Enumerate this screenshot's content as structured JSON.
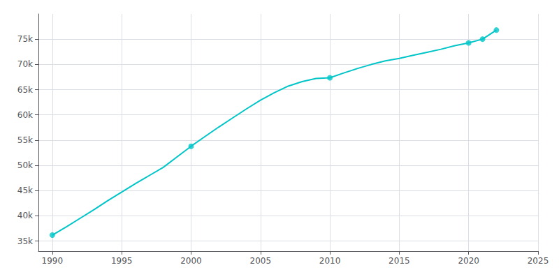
{
  "chart_data": {
    "type": "line",
    "series": [
      {
        "type": "line",
        "color": "#00C5C8",
        "x": [
          1990,
          1991,
          1992,
          1993,
          1994,
          1995,
          1996,
          1997,
          1998,
          1999,
          2000,
          2001,
          2002,
          2003,
          2004,
          2005,
          2006,
          2007,
          2008,
          2009,
          2010,
          2011,
          2012,
          2013,
          2014,
          2015,
          2016,
          2017,
          2018,
          2019,
          2020,
          2021,
          2022
        ],
        "values": [
          36176,
          37800,
          39500,
          41200,
          43000,
          44700,
          46400,
          48000,
          49600,
          51700,
          53780,
          55700,
          57600,
          59400,
          61200,
          62900,
          64400,
          65700,
          66600,
          67200,
          67358,
          68300,
          69200,
          70000,
          70700,
          71200,
          71800,
          72400,
          73000,
          73700,
          74259,
          75006,
          76799
        ]
      },
      {
        "type": "scatter",
        "color": "#00C5C8",
        "marker": "circle",
        "x": [
          1990,
          2000,
          2010,
          2020,
          2021,
          2022
        ],
        "values": [
          36176,
          53780,
          67358,
          74259,
          75006,
          76799
        ]
      }
    ],
    "xlim": [
      1989,
      2025
    ],
    "ylim": [
      33000,
      80000
    ],
    "xticks": [
      1990,
      1995,
      2000,
      2005,
      2010,
      2015,
      2020,
      2025
    ],
    "yticks": [
      {
        "value": 35000,
        "label": "35k"
      },
      {
        "value": 40000,
        "label": "40k"
      },
      {
        "value": 45000,
        "label": "45k"
      },
      {
        "value": 50000,
        "label": "50k"
      },
      {
        "value": 55000,
        "label": "55k"
      },
      {
        "value": 60000,
        "label": "60k"
      },
      {
        "value": 65000,
        "label": "65k"
      },
      {
        "value": 70000,
        "label": "70k"
      },
      {
        "value": 75000,
        "label": "75k"
      }
    ],
    "grid": true
  }
}
